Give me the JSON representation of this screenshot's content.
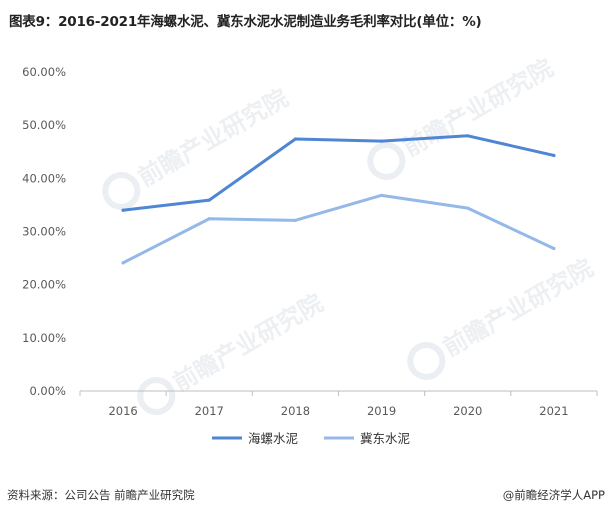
{
  "title": "图表9：2016-2021年海螺水泥、冀东水泥水泥制造业务毛利率对比(单位：%)",
  "watermark_text": "前瞻产业研究院",
  "colors": {
    "series1": "#4f86d4",
    "series2": "#94b8e8",
    "axis": "#bfbfbf",
    "text": "#595959"
  },
  "chart_data": {
    "type": "line",
    "title": "图表9：2016-2021年海螺水泥、冀东水泥水泥制造业务毛利率对比(单位：%)",
    "xlabel": "",
    "ylabel": "",
    "categories": [
      "2016",
      "2017",
      "2018",
      "2019",
      "2020",
      "2021"
    ],
    "ylim": [
      0,
      60
    ],
    "yticks": [
      "0.00%",
      "10.00%",
      "20.00%",
      "30.00%",
      "40.00%",
      "50.00%",
      "60.00%"
    ],
    "grid": false,
    "legend_position": "bottom",
    "series": [
      {
        "name": "海螺水泥",
        "values": [
          34.0,
          35.9,
          47.4,
          47.0,
          48.0,
          44.3
        ]
      },
      {
        "name": "冀东水泥",
        "values": [
          24.1,
          32.4,
          32.1,
          36.8,
          34.4,
          26.8
        ]
      }
    ]
  },
  "footer": {
    "source": "资料来源：公司公告 前瞻产业研究院",
    "brand": "@前瞻经济学人APP"
  }
}
